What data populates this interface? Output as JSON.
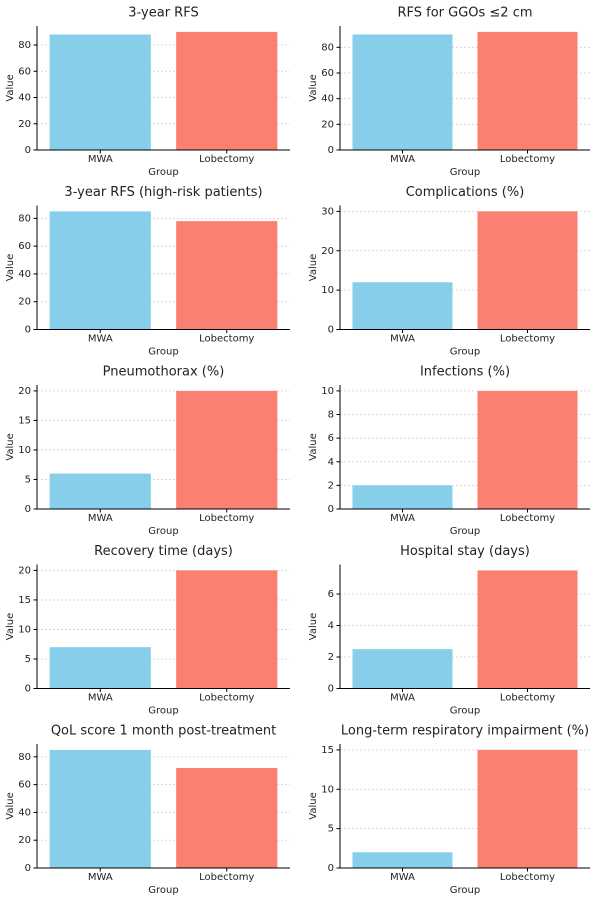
{
  "chart_data": [
    {
      "type": "bar",
      "title": "3-year RFS",
      "xlabel": "Group",
      "ylabel": "Value",
      "categories": [
        "MWA",
        "Lobectomy"
      ],
      "values": [
        88,
        90
      ],
      "colors": [
        "#87ceeb",
        "#fa8072"
      ],
      "ylim": [
        0,
        94.5
      ],
      "yticks": [
        0,
        20,
        40,
        60,
        80
      ],
      "grid": true
    },
    {
      "type": "bar",
      "title": "RFS for GGOs ≤2 cm",
      "xlabel": "Group",
      "ylabel": "Value",
      "categories": [
        "MWA",
        "Lobectomy"
      ],
      "values": [
        90,
        92
      ],
      "colors": [
        "#87ceeb",
        "#fa8072"
      ],
      "ylim": [
        0,
        96.6
      ],
      "yticks": [
        0,
        20,
        40,
        60,
        80
      ],
      "grid": true
    },
    {
      "type": "bar",
      "title": "3-year RFS (high-risk patients)",
      "xlabel": "Group",
      "ylabel": "Value",
      "categories": [
        "MWA",
        "Lobectomy"
      ],
      "values": [
        85,
        78
      ],
      "colors": [
        "#87ceeb",
        "#fa8072"
      ],
      "ylim": [
        0,
        89.25
      ],
      "yticks": [
        0,
        20,
        40,
        60,
        80
      ],
      "grid": true
    },
    {
      "type": "bar",
      "title": "Complications (%)",
      "xlabel": "Group",
      "ylabel": "Value",
      "categories": [
        "MWA",
        "Lobectomy"
      ],
      "values": [
        12,
        30
      ],
      "colors": [
        "#87ceeb",
        "#fa8072"
      ],
      "ylim": [
        0,
        31.5
      ],
      "yticks": [
        0,
        10,
        20,
        30
      ],
      "grid": true
    },
    {
      "type": "bar",
      "title": "Pneumothorax (%)",
      "xlabel": "Group",
      "ylabel": "Value",
      "categories": [
        "MWA",
        "Lobectomy"
      ],
      "values": [
        6,
        20
      ],
      "colors": [
        "#87ceeb",
        "#fa8072"
      ],
      "ylim": [
        0,
        21
      ],
      "yticks": [
        0,
        5,
        10,
        15,
        20
      ],
      "grid": true
    },
    {
      "type": "bar",
      "title": "Infections (%)",
      "xlabel": "Group",
      "ylabel": "Value",
      "categories": [
        "MWA",
        "Lobectomy"
      ],
      "values": [
        2,
        10
      ],
      "colors": [
        "#87ceeb",
        "#fa8072"
      ],
      "ylim": [
        0,
        10.5
      ],
      "yticks": [
        0,
        2,
        4,
        6,
        8,
        10
      ],
      "grid": true
    },
    {
      "type": "bar",
      "title": "Recovery time (days)",
      "xlabel": "Group",
      "ylabel": "Value",
      "categories": [
        "MWA",
        "Lobectomy"
      ],
      "values": [
        7,
        20
      ],
      "colors": [
        "#87ceeb",
        "#fa8072"
      ],
      "ylim": [
        0,
        21
      ],
      "yticks": [
        0,
        5,
        10,
        15,
        20
      ],
      "grid": true
    },
    {
      "type": "bar",
      "title": "Hospital stay (days)",
      "xlabel": "Group",
      "ylabel": "Value",
      "categories": [
        "MWA",
        "Lobectomy"
      ],
      "values": [
        2.5,
        7.5
      ],
      "colors": [
        "#87ceeb",
        "#fa8072"
      ],
      "ylim": [
        0,
        7.875
      ],
      "yticks": [
        0,
        2,
        4,
        6
      ],
      "grid": true
    },
    {
      "type": "bar",
      "title": "QoL score 1 month post-treatment",
      "xlabel": "Group",
      "ylabel": "Value",
      "categories": [
        "MWA",
        "Lobectomy"
      ],
      "values": [
        85,
        72
      ],
      "colors": [
        "#87ceeb",
        "#fa8072"
      ],
      "ylim": [
        0,
        89.25
      ],
      "yticks": [
        0,
        20,
        40,
        60,
        80
      ],
      "grid": true
    },
    {
      "type": "bar",
      "title": "Long-term respiratory impairment (%)",
      "xlabel": "Group",
      "ylabel": "Value",
      "categories": [
        "MWA",
        "Lobectomy"
      ],
      "values": [
        2,
        15
      ],
      "colors": [
        "#87ceeb",
        "#fa8072"
      ],
      "ylim": [
        0,
        15.75
      ],
      "yticks": [
        0,
        5,
        10,
        15
      ],
      "grid": true
    }
  ]
}
